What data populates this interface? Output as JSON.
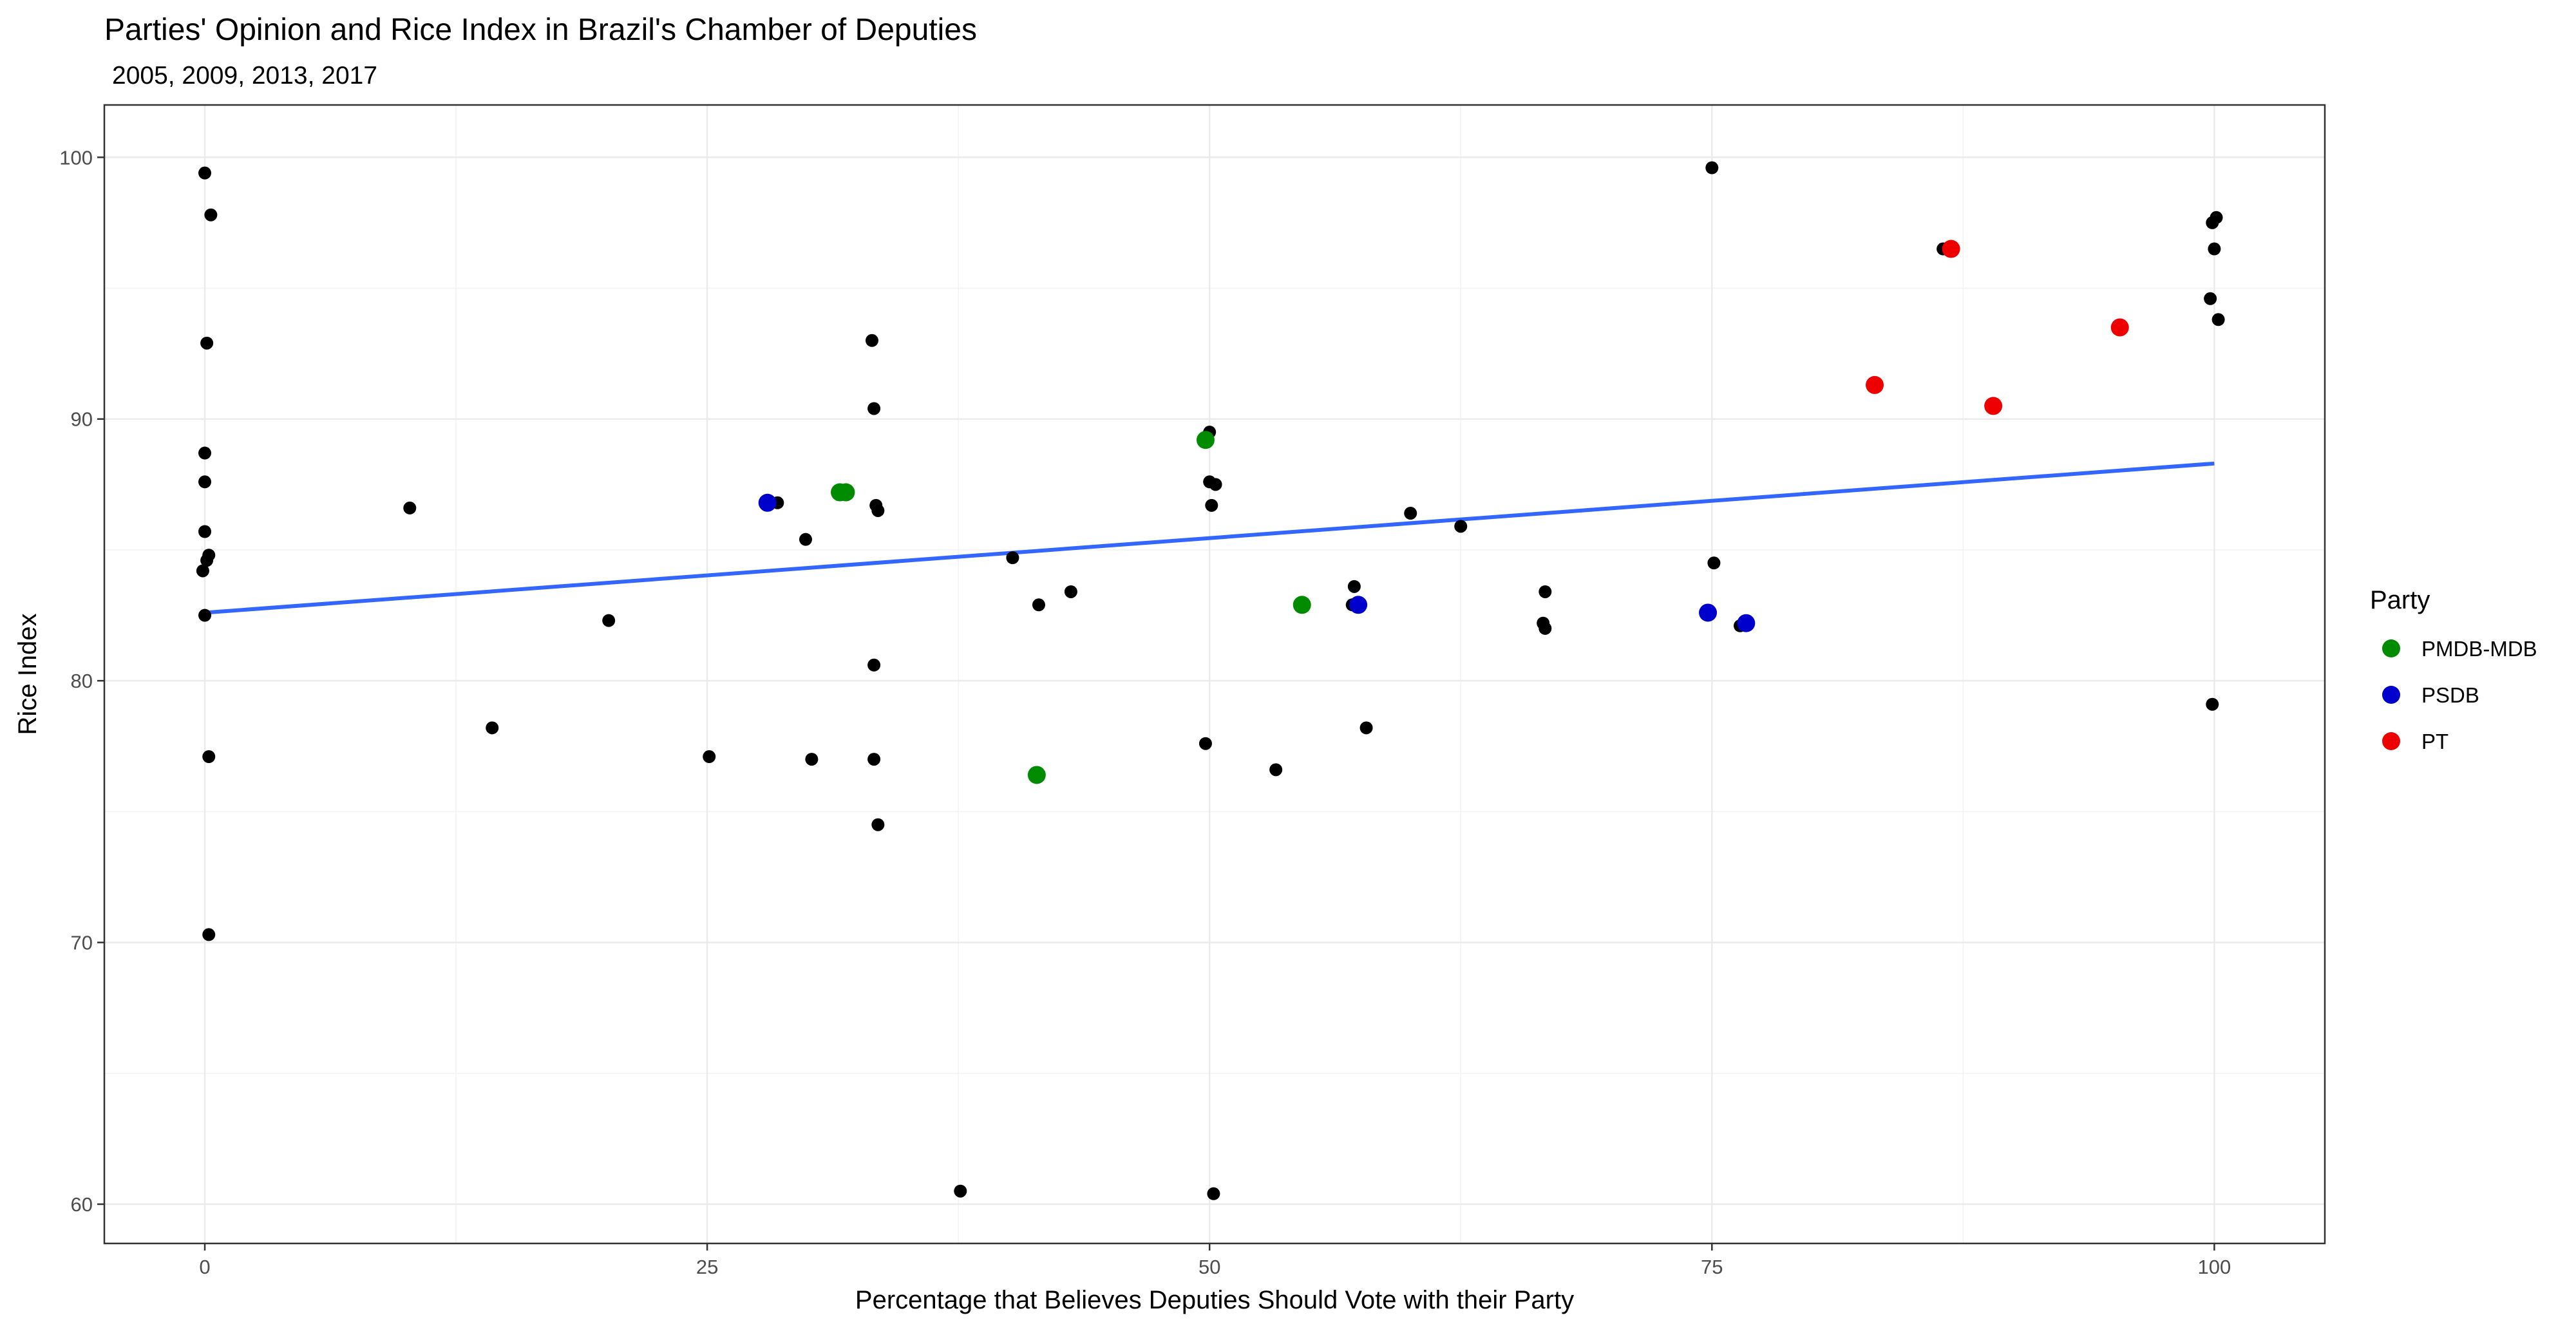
{
  "chart_data": {
    "type": "scatter",
    "title": "Parties' Opinion and Rice Index in Brazil's Chamber of Deputies",
    "subtitle": "2005, 2009, 2013, 2017",
    "xlabel": "Percentage that Believes Deputies Should Vote with their Party",
    "ylabel": "Rice Index",
    "xlim": [
      -5,
      105.5
    ],
    "ylim": [
      58.5,
      102
    ],
    "x_ticks": [
      0,
      25,
      50,
      75,
      100
    ],
    "y_ticks": [
      60,
      70,
      80,
      90,
      100
    ],
    "grid": true,
    "legend": {
      "title": "Party",
      "position": "right",
      "entries": [
        {
          "label": "PMDB-MDB",
          "color": "#008b00"
        },
        {
          "label": "PSDB",
          "color": "#0000cd"
        },
        {
          "label": "PT",
          "color": "#ee0000"
        }
      ]
    },
    "other_color": "#000000",
    "trend_line": {
      "color": "#3366ff",
      "x": [
        0,
        100
      ],
      "y": [
        82.6,
        88.3
      ]
    },
    "points": [
      {
        "x": 0,
        "y": 99.4
      },
      {
        "x": 0.3,
        "y": 97.8
      },
      {
        "x": 0.1,
        "y": 92.9
      },
      {
        "x": 0,
        "y": 88.7
      },
      {
        "x": 0,
        "y": 87.6
      },
      {
        "x": 0,
        "y": 85.7
      },
      {
        "x": 0.2,
        "y": 84.8
      },
      {
        "x": 0.1,
        "y": 84.6
      },
      {
        "x": -0.1,
        "y": 84.2
      },
      {
        "x": 0,
        "y": 82.5
      },
      {
        "x": 0.2,
        "y": 77.1
      },
      {
        "x": 0.2,
        "y": 70.3
      },
      {
        "x": 10.2,
        "y": 86.6
      },
      {
        "x": 14.3,
        "y": 78.2
      },
      {
        "x": 20.1,
        "y": 82.3
      },
      {
        "x": 25.1,
        "y": 77.1
      },
      {
        "x": 28.5,
        "y": 86.8
      },
      {
        "x": 29.9,
        "y": 85.4
      },
      {
        "x": 30.2,
        "y": 77
      },
      {
        "x": 33.2,
        "y": 93
      },
      {
        "x": 33.3,
        "y": 90.4
      },
      {
        "x": 33.4,
        "y": 86.7
      },
      {
        "x": 33.5,
        "y": 86.5
      },
      {
        "x": 33.3,
        "y": 80.6
      },
      {
        "x": 33.3,
        "y": 77
      },
      {
        "x": 33.5,
        "y": 74.5
      },
      {
        "x": 37.6,
        "y": 60.5
      },
      {
        "x": 40.2,
        "y": 84.7
      },
      {
        "x": 41.5,
        "y": 82.9
      },
      {
        "x": 43.1,
        "y": 83.4
      },
      {
        "x": 50,
        "y": 89.5
      },
      {
        "x": 50,
        "y": 87.6
      },
      {
        "x": 50.3,
        "y": 87.5
      },
      {
        "x": 50.1,
        "y": 86.7
      },
      {
        "x": 49.8,
        "y": 77.6
      },
      {
        "x": 50.2,
        "y": 60.4
      },
      {
        "x": 53.3,
        "y": 76.6
      },
      {
        "x": 57.2,
        "y": 83.6
      },
      {
        "x": 57.8,
        "y": 78.2
      },
      {
        "x": 60,
        "y": 86.4
      },
      {
        "x": 62.5,
        "y": 85.9
      },
      {
        "x": 66.7,
        "y": 83.4
      },
      {
        "x": 66.6,
        "y": 82.2
      },
      {
        "x": 66.7,
        "y": 82
      },
      {
        "x": 75,
        "y": 99.6
      },
      {
        "x": 75.1,
        "y": 84.5
      },
      {
        "x": 86.5,
        "y": 96.5
      },
      {
        "x": 99.9,
        "y": 97.5
      },
      {
        "x": 100.1,
        "y": 97.7
      },
      {
        "x": 100,
        "y": 96.5
      },
      {
        "x": 99.8,
        "y": 94.6
      },
      {
        "x": 100.2,
        "y": 93.8
      },
      {
        "x": 99.9,
        "y": 79.1
      },
      {
        "x": 54.6,
        "y": 82.9
      },
      {
        "x": 57.1,
        "y": 82.9
      },
      {
        "x": 76.4,
        "y": 82.1
      },
      {
        "x": 31.6,
        "y": 87.2,
        "party": "PMDB-MDB"
      },
      {
        "x": 31.9,
        "y": 87.2,
        "party": "PMDB-MDB"
      },
      {
        "x": 49.8,
        "y": 89.2,
        "party": "PMDB-MDB"
      },
      {
        "x": 54.6,
        "y": 82.9,
        "party": "PMDB-MDB"
      },
      {
        "x": 41.4,
        "y": 76.4,
        "party": "PMDB-MDB"
      },
      {
        "x": 28,
        "y": 86.8,
        "party": "PSDB"
      },
      {
        "x": 57.4,
        "y": 82.9,
        "party": "PSDB"
      },
      {
        "x": 74.8,
        "y": 82.6,
        "party": "PSDB"
      },
      {
        "x": 76.7,
        "y": 82.2,
        "party": "PSDB"
      },
      {
        "x": 86.9,
        "y": 96.5,
        "party": "PT"
      },
      {
        "x": 83.1,
        "y": 91.3,
        "party": "PT"
      },
      {
        "x": 89,
        "y": 90.5,
        "party": "PT"
      },
      {
        "x": 95.3,
        "y": 93.5,
        "party": "PT"
      }
    ]
  }
}
